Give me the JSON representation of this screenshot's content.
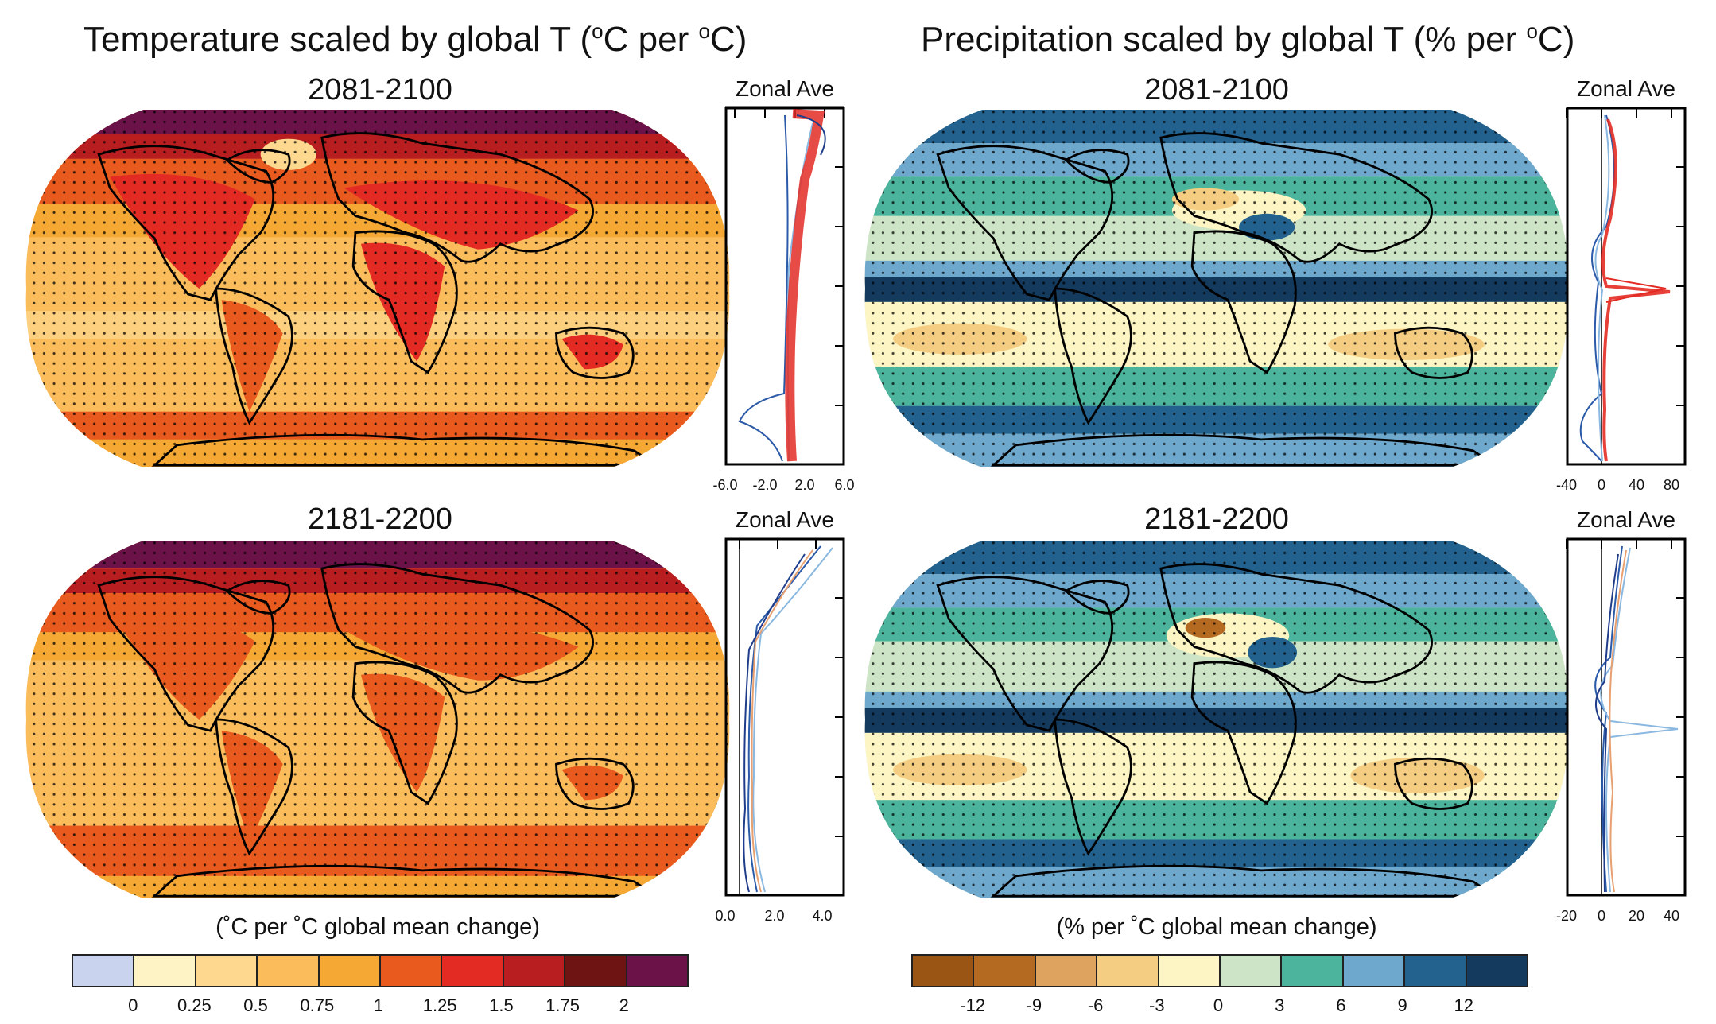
{
  "left": {
    "title_main": "Temperature scaled by global T (",
    "title_sup1": "o",
    "title_mid": "C per ",
    "title_sup2": "o",
    "title_end": "C)",
    "panels": [
      {
        "period": "2081-2100",
        "zonal_title": "Zonal Ave",
        "ticks": [
          "-6.0",
          "-2.0",
          "2.0",
          "6.0"
        ]
      },
      {
        "period": "2181-2200",
        "zonal_title": "Zonal Ave",
        "ticks": [
          "0.0",
          "2.0",
          "4.0"
        ]
      }
    ],
    "units": "(˚C per ˚C global mean change)",
    "colorbar": {
      "colors": [
        "#c9d3ee",
        "#fdf3c4",
        "#fdd88e",
        "#fbbd5c",
        "#f5a833",
        "#e85a1e",
        "#e32b24",
        "#b81d1f",
        "#6e1413",
        "#6b1248"
      ],
      "labels": [
        "0",
        "0.25",
        "0.5",
        "0.75",
        "1",
        "1.25",
        "1.5",
        "1.75",
        "2"
      ]
    }
  },
  "right": {
    "title_main": "Precipitation scaled by global T (% per ",
    "title_sup": "o",
    "title_end": "C)",
    "panels": [
      {
        "period": "2081-2100",
        "zonal_title": "Zonal Ave",
        "ticks": [
          "-40",
          "0",
          "40",
          "80"
        ]
      },
      {
        "period": "2181-2200",
        "zonal_title": "Zonal Ave",
        "ticks": [
          "-20",
          "0",
          "20",
          "40"
        ]
      }
    ],
    "units": "(% per ˚C global mean change)",
    "colorbar": {
      "colors": [
        "#9a5414",
        "#b56a22",
        "#dea35f",
        "#f4cd82",
        "#fdf6c4",
        "#cde5c6",
        "#4cb49c",
        "#6fa8cd",
        "#23628f",
        "#143a5e"
      ],
      "labels": [
        "-12",
        "-9",
        "-6",
        "-3",
        "0",
        "3",
        "6",
        "9",
        "12"
      ]
    }
  }
}
